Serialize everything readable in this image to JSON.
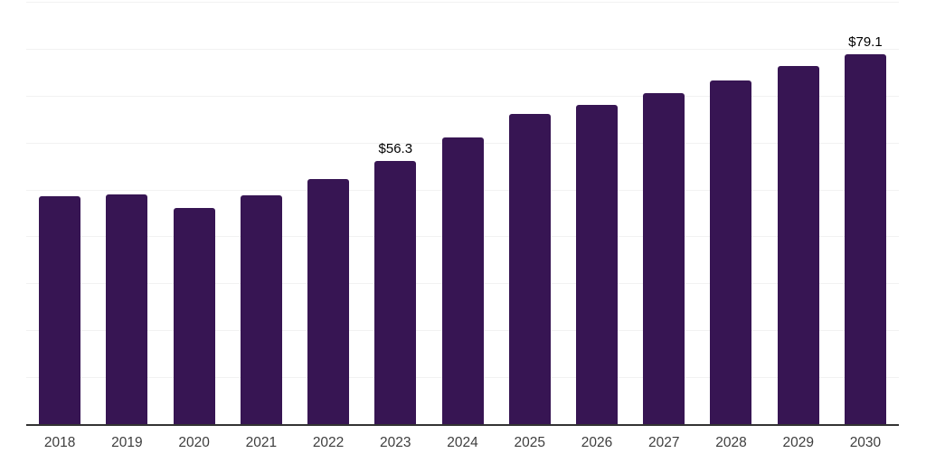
{
  "chart_data": {
    "type": "bar",
    "categories": [
      "2018",
      "2019",
      "2020",
      "2021",
      "2022",
      "2023",
      "2024",
      "2025",
      "2026",
      "2027",
      "2028",
      "2029",
      "2030"
    ],
    "values": [
      48.8,
      49.1,
      46.2,
      49.0,
      52.4,
      56.3,
      61.3,
      66.3,
      68.3,
      70.8,
      73.4,
      76.6,
      79.1
    ],
    "value_labels": [
      "",
      "",
      "",
      "",
      "",
      "$56.3",
      "",
      "",
      "",
      "",
      "",
      "",
      "$79.1"
    ],
    "title": "",
    "xlabel": "",
    "ylabel": "",
    "ylim": [
      0,
      90
    ],
    "gridline_step": 10,
    "grid": true,
    "legend": false,
    "y_axis_labels_visible": false,
    "colors": {
      "bar": "#371553",
      "axis_line": "#333333",
      "gridline": "#f2f2f2",
      "value_label": "#000000",
      "tick_label": "#3e3e3e",
      "background": "#ffffff"
    }
  }
}
